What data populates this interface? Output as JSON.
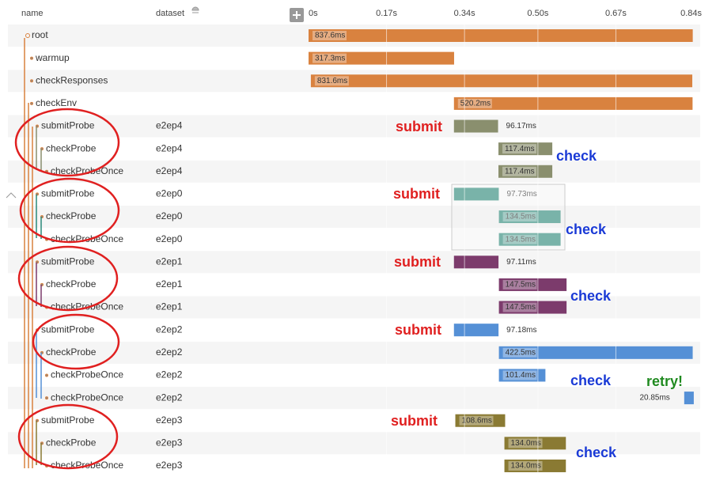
{
  "header": {
    "name": "name",
    "dataset": "dataset"
  },
  "axis": {
    "xlim": [
      0,
      0.84
    ],
    "xticks": [
      {
        "value": 0,
        "label": "0s"
      },
      {
        "value": 0.17,
        "label": "0.17s"
      },
      {
        "value": 0.34,
        "label": "0.34s"
      },
      {
        "value": 0.5,
        "label": "0.50s"
      },
      {
        "value": 0.67,
        "label": "0.67s"
      },
      {
        "value": 0.84,
        "label": "0.84s"
      }
    ]
  },
  "rows": [
    {
      "name": "root",
      "dataset": null,
      "start": 0,
      "duration": 0.8376,
      "duration_label": "837.6ms",
      "color": "#d9823f"
    },
    {
      "name": "warmup",
      "dataset": null,
      "start": 0,
      "duration": 0.3173,
      "duration_label": "317.3ms",
      "color": "#d9823f"
    },
    {
      "name": "checkResponses",
      "dataset": null,
      "start": 0.005,
      "duration": 0.8316,
      "duration_label": "831.6ms",
      "color": "#d9823f"
    },
    {
      "name": "checkEnv",
      "dataset": null,
      "start": 0.317,
      "duration": 0.5202,
      "duration_label": "520.2ms",
      "color": "#d9823f"
    },
    {
      "name": "submitProbe",
      "dataset": "e2ep4",
      "start": 0.317,
      "duration": 0.09617,
      "duration_label": "96.17ms",
      "color": "#8a8f6e"
    },
    {
      "name": "checkProbe",
      "dataset": "e2ep4",
      "start": 0.414,
      "duration": 0.1174,
      "duration_label": "117.4ms",
      "color": "#8a8f6e"
    },
    {
      "name": "checkProbeOnce",
      "dataset": "e2ep4",
      "start": 0.414,
      "duration": 0.1174,
      "duration_label": "117.4ms",
      "color": "#8a8f6e"
    },
    {
      "name": "submitProbe",
      "dataset": "e2ep0",
      "start": 0.317,
      "duration": 0.09773,
      "duration_label": "97.73ms",
      "color": "#2a8a7a"
    },
    {
      "name": "checkProbe",
      "dataset": "e2ep0",
      "start": 0.415,
      "duration": 0.1345,
      "duration_label": "134.5ms",
      "color": "#2a8a7a"
    },
    {
      "name": "checkProbeOnce",
      "dataset": "e2ep0",
      "start": 0.415,
      "duration": 0.1345,
      "duration_label": "134.5ms",
      "color": "#2a8a7a"
    },
    {
      "name": "submitProbe",
      "dataset": "e2ep1",
      "start": 0.317,
      "duration": 0.09711,
      "duration_label": "97.11ms",
      "color": "#7c3b6c"
    },
    {
      "name": "checkProbe",
      "dataset": "e2ep1",
      "start": 0.415,
      "duration": 0.1475,
      "duration_label": "147.5ms",
      "color": "#7c3b6c"
    },
    {
      "name": "checkProbeOnce",
      "dataset": "e2ep1",
      "start": 0.415,
      "duration": 0.1475,
      "duration_label": "147.5ms",
      "color": "#7c3b6c"
    },
    {
      "name": "submitProbe",
      "dataset": "e2ep2",
      "start": 0.317,
      "duration": 0.09718,
      "duration_label": "97.18ms",
      "color": "#5590d6"
    },
    {
      "name": "checkProbe",
      "dataset": "e2ep2",
      "start": 0.415,
      "duration": 0.4225,
      "duration_label": "422.5ms",
      "color": "#5590d6"
    },
    {
      "name": "checkProbeOnce",
      "dataset": "e2ep2",
      "start": 0.415,
      "duration": 0.1014,
      "duration_label": "101.4ms",
      "color": "#5590d6"
    },
    {
      "name": "checkProbeOnce",
      "dataset": "e2ep2",
      "start": 0.819,
      "duration": 0.02085,
      "duration_label": "20.85ms",
      "color": "#5590d6"
    },
    {
      "name": "submitProbe",
      "dataset": "e2ep3",
      "start": 0.32,
      "duration": 0.1086,
      "duration_label": "108.6ms",
      "color": "#8a7a33"
    },
    {
      "name": "checkProbe",
      "dataset": "e2ep3",
      "start": 0.427,
      "duration": 0.134,
      "duration_label": "134.0ms",
      "color": "#8a7a33"
    },
    {
      "name": "checkProbeOnce",
      "dataset": "e2ep3",
      "start": 0.427,
      "duration": 0.134,
      "duration_label": "134.0ms",
      "color": "#8a7a33"
    }
  ],
  "annotations": [
    "submit",
    "check",
    "submit",
    "check",
    "submit",
    "check",
    "submit",
    "check",
    "retry!",
    "submit",
    "check"
  ]
}
